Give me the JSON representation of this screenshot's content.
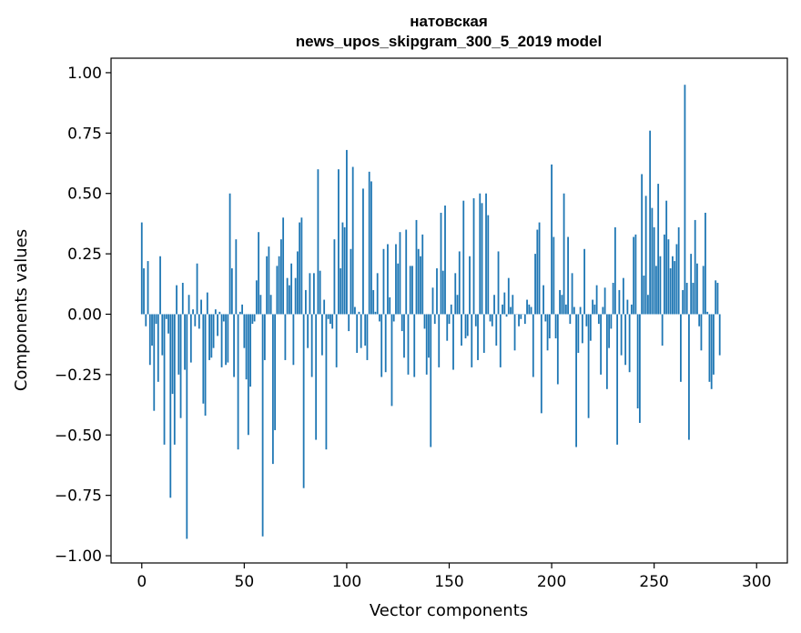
{
  "chart_data": {
    "type": "bar",
    "title": "натовская",
    "subtitle": "news_upos_skipgram_300_5_2019 model",
    "xlabel": "Vector components",
    "ylabel": "Components values",
    "xlim": [
      -15,
      315
    ],
    "ylim": [
      -1.03,
      1.06
    ],
    "xticks": [
      0,
      50,
      100,
      150,
      200,
      250,
      300
    ],
    "xtick_labels": [
      "0",
      "50",
      "100",
      "150",
      "200",
      "250",
      "300"
    ],
    "yticks": [
      -1.0,
      -0.75,
      -0.5,
      -0.25,
      0.0,
      0.25,
      0.5,
      0.75,
      1.0
    ],
    "ytick_labels": [
      "−1.00",
      "−0.75",
      "−0.50",
      "−0.25",
      "0.00",
      "0.25",
      "0.50",
      "0.75",
      "1.00"
    ],
    "grid": false,
    "bar_color": "#1f77b4",
    "values": [
      0.38,
      0.19,
      -0.05,
      0.22,
      -0.21,
      -0.13,
      -0.4,
      -0.04,
      -0.28,
      0.24,
      -0.17,
      -0.54,
      -0.02,
      -0.08,
      -0.76,
      -0.33,
      -0.54,
      0.12,
      -0.25,
      -0.43,
      0.13,
      -0.23,
      -0.93,
      0.08,
      -0.2,
      0.02,
      -0.05,
      0.21,
      -0.06,
      0.06,
      -0.37,
      -0.42,
      0.09,
      -0.19,
      -0.18,
      -0.14,
      0.02,
      -0.09,
      0.01,
      -0.22,
      -0.03,
      -0.21,
      -0.2,
      0.5,
      0.19,
      -0.26,
      0.31,
      -0.56,
      0.01,
      0.04,
      -0.14,
      -0.27,
      -0.5,
      -0.3,
      -0.04,
      -0.03,
      0.14,
      0.34,
      0.08,
      -0.92,
      -0.19,
      0.24,
      0.28,
      0.08,
      -0.62,
      -0.48,
      0.2,
      0.24,
      0.31,
      0.4,
      -0.19,
      0.15,
      0.12,
      0.21,
      -0.21,
      0.15,
      0.26,
      0.38,
      0.4,
      -0.72,
      0.1,
      -0.14,
      0.17,
      -0.26,
      0.17,
      -0.52,
      0.6,
      0.18,
      -0.17,
      0.06,
      -0.56,
      -0.02,
      -0.04,
      -0.06,
      0.31,
      -0.22,
      0.6,
      0.19,
      0.38,
      0.36,
      0.68,
      -0.07,
      0.27,
      0.61,
      0.03,
      -0.16,
      0.01,
      -0.14,
      0.52,
      -0.13,
      -0.19,
      0.59,
      0.55,
      0.1,
      0.01,
      0.17,
      -0.03,
      -0.26,
      0.27,
      -0.24,
      0.29,
      0.07,
      -0.38,
      -0.03,
      0.29,
      0.21,
      0.34,
      -0.07,
      -0.18,
      0.35,
      -0.25,
      0.2,
      0.2,
      -0.26,
      0.39,
      0.27,
      0.24,
      0.33,
      -0.06,
      -0.25,
      -0.18,
      -0.55,
      0.11,
      -0.04,
      0.19,
      -0.22,
      0.42,
      0.18,
      0.45,
      -0.11,
      -0.04,
      0.04,
      -0.23,
      0.17,
      0.08,
      0.26,
      -0.13,
      0.47,
      -0.1,
      -0.09,
      0.24,
      -0.22,
      0.48,
      -0.05,
      -0.19,
      0.5,
      0.46,
      -0.16,
      0.5,
      0.41,
      -0.03,
      -0.05,
      0.08,
      -0.13,
      0.26,
      -0.22,
      0.04,
      0.09,
      -0.01,
      0.15,
      0.03,
      0.08,
      -0.15,
      0.0,
      -0.05,
      -0.02,
      0.0,
      -0.04,
      0.06,
      0.04,
      0.03,
      -0.26,
      0.25,
      0.35,
      0.38,
      -0.41,
      0.12,
      -0.03,
      -0.15,
      -0.1,
      0.62,
      0.32,
      -0.1,
      -0.29,
      0.1,
      0.08,
      0.5,
      0.04,
      0.32,
      -0.04,
      0.17,
      0.03,
      -0.55,
      -0.16,
      0.03,
      -0.12,
      0.27,
      -0.05,
      -0.43,
      -0.11,
      0.06,
      0.04,
      0.12,
      -0.04,
      -0.25,
      0.03,
      0.11,
      -0.31,
      -0.14,
      -0.06,
      0.13,
      0.36,
      -0.54,
      0.1,
      -0.17,
      0.15,
      -0.21,
      0.06,
      -0.24,
      0.04,
      0.32,
      0.33,
      -0.39,
      -0.45,
      0.58,
      0.16,
      0.49,
      0.08,
      0.76,
      0.44,
      0.36,
      0.2,
      0.54,
      0.24,
      -0.13,
      0.33,
      0.47,
      0.31,
      0.19,
      0.24,
      0.22,
      0.29,
      0.36,
      -0.28,
      0.1,
      0.95,
      0.13,
      -0.52,
      0.25,
      0.13,
      0.39,
      0.21,
      -0.05,
      -0.15,
      0.2,
      0.42,
      0.01,
      -0.28,
      -0.31,
      -0.25,
      0.14,
      0.13,
      -0.17
    ]
  }
}
